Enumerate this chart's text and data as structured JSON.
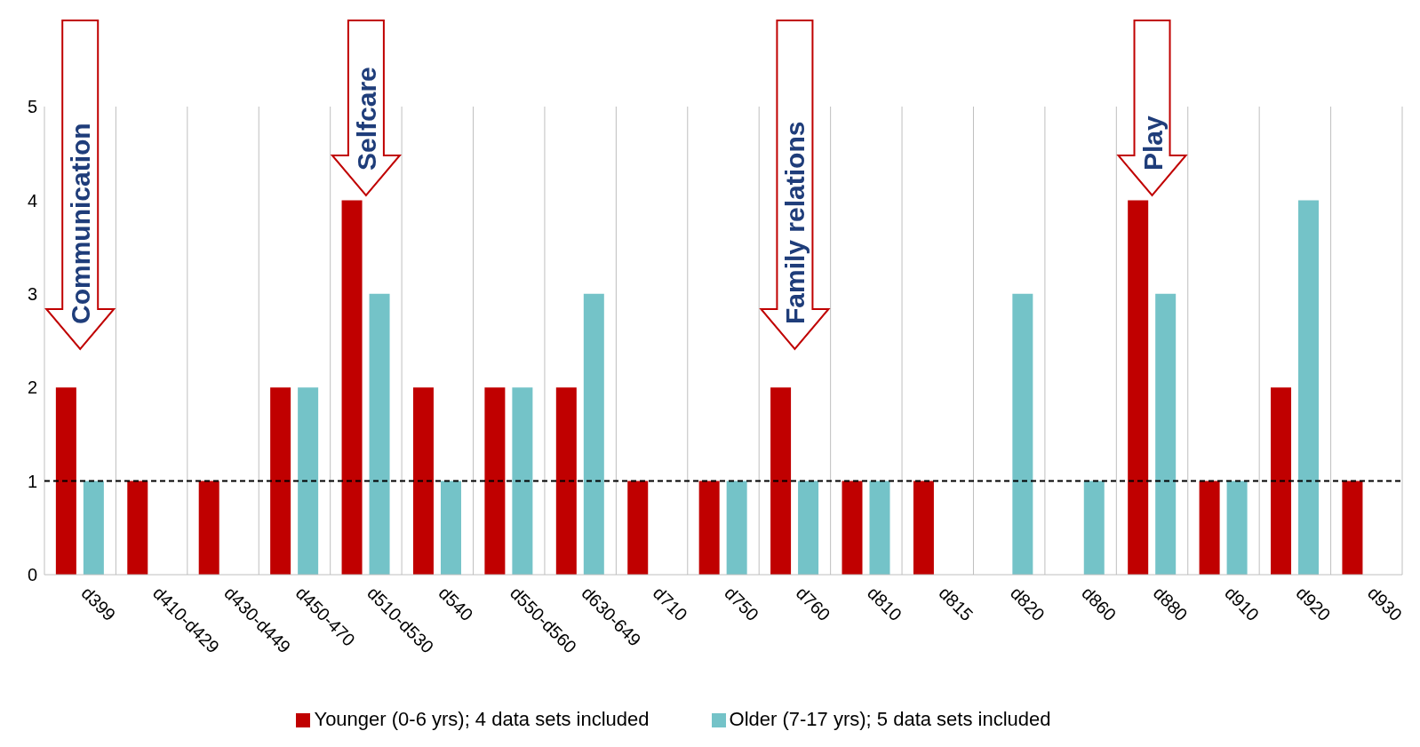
{
  "chart_data": {
    "type": "bar",
    "categories": [
      "d399",
      "d410-d429",
      "d430-d449",
      "d450-470",
      "d510-d530",
      "d540",
      "d550-d560",
      "d630-649",
      "d710",
      "d750",
      "d760",
      "d810",
      "d815",
      "d820",
      "d860",
      "d880",
      "d910",
      "d920",
      "d930"
    ],
    "series": [
      {
        "name": "Younger (0-6 yrs); 4 data sets included",
        "color": "#c00000",
        "values": [
          2,
          1,
          1,
          2,
          4,
          2,
          2,
          2,
          1,
          1,
          2,
          1,
          1,
          null,
          null,
          4,
          1,
          2,
          1
        ]
      },
      {
        "name": "Older (7-17 yrs); 5 data sets included",
        "color": "#74c3c8",
        "values": [
          1,
          null,
          null,
          2,
          3,
          1,
          2,
          3,
          null,
          1,
          1,
          1,
          null,
          3,
          1,
          3,
          1,
          4,
          null
        ]
      }
    ],
    "ylim": [
      0,
      5
    ],
    "yticks": [
      0,
      1,
      2,
      3,
      4,
      5
    ],
    "grid": "x",
    "legend": "bottom",
    "ref_lines": [
      {
        "axis": "y",
        "value": 1,
        "line_style": "dashed",
        "color": "#000000"
      }
    ],
    "annotations": [
      "Communication",
      "Selfcare",
      "Family relations",
      "Play"
    ]
  }
}
